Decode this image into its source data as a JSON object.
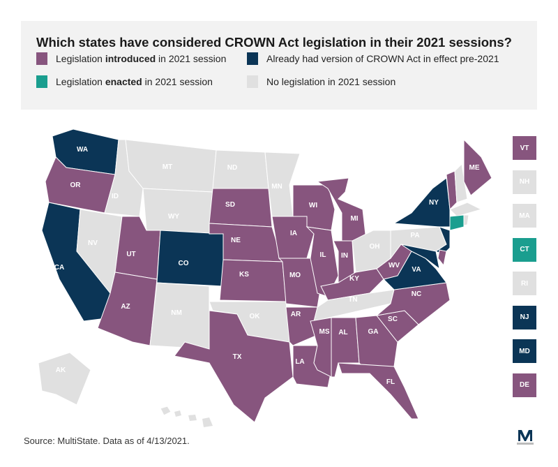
{
  "title": "Which states have considered CROWN Act legislation in their 2021 sessions?",
  "legend": [
    {
      "pre": "Legislation ",
      "bold": "introduced",
      "post": " in 2021 session",
      "status": "introduced"
    },
    {
      "pre": "Already had version of CROWN Act in effect pre-2021",
      "bold": "",
      "post": "",
      "status": "prior"
    },
    {
      "pre": "Legislation ",
      "bold": "enacted",
      "post": " in 2021 session",
      "status": "enacted"
    },
    {
      "pre": "No legislation in 2021 session",
      "bold": "",
      "post": "",
      "status": "none"
    }
  ],
  "colors": {
    "introduced": "#87557e",
    "prior": "#0b3556",
    "enacted": "#1a9e8f",
    "none": "#e0e0e0"
  },
  "states": {
    "WA": "prior",
    "OR": "introduced",
    "CA": "prior",
    "NV": "none",
    "ID": "none",
    "MT": "none",
    "WY": "none",
    "UT": "introduced",
    "CO": "prior",
    "AZ": "introduced",
    "NM": "none",
    "ND": "none",
    "SD": "introduced",
    "NE": "introduced",
    "KS": "introduced",
    "OK": "none",
    "TX": "introduced",
    "MN": "none",
    "IA": "introduced",
    "MO": "introduced",
    "AR": "introduced",
    "LA": "introduced",
    "WI": "introduced",
    "IL": "introduced",
    "MI": "introduced",
    "IN": "introduced",
    "OH": "none",
    "KY": "introduced",
    "TN": "none",
    "MS": "introduced",
    "AL": "introduced",
    "GA": "introduced",
    "FL": "introduced",
    "SC": "introduced",
    "NC": "introduced",
    "VA": "prior",
    "WV": "introduced",
    "PA": "none",
    "NY": "prior",
    "NJ": "prior",
    "MD": "prior",
    "DE": "introduced",
    "VT": "introduced",
    "NH": "none",
    "ME": "introduced",
    "MA": "none",
    "CT": "enacted",
    "RI": "none",
    "AK": "none",
    "HI": "none"
  },
  "small_states": [
    "VT",
    "NH",
    "MA",
    "CT",
    "RI",
    "NJ",
    "MD",
    "DE"
  ],
  "source": "Source: MultiState. Data as of 4/13/2021.",
  "logo_letter": "M"
}
